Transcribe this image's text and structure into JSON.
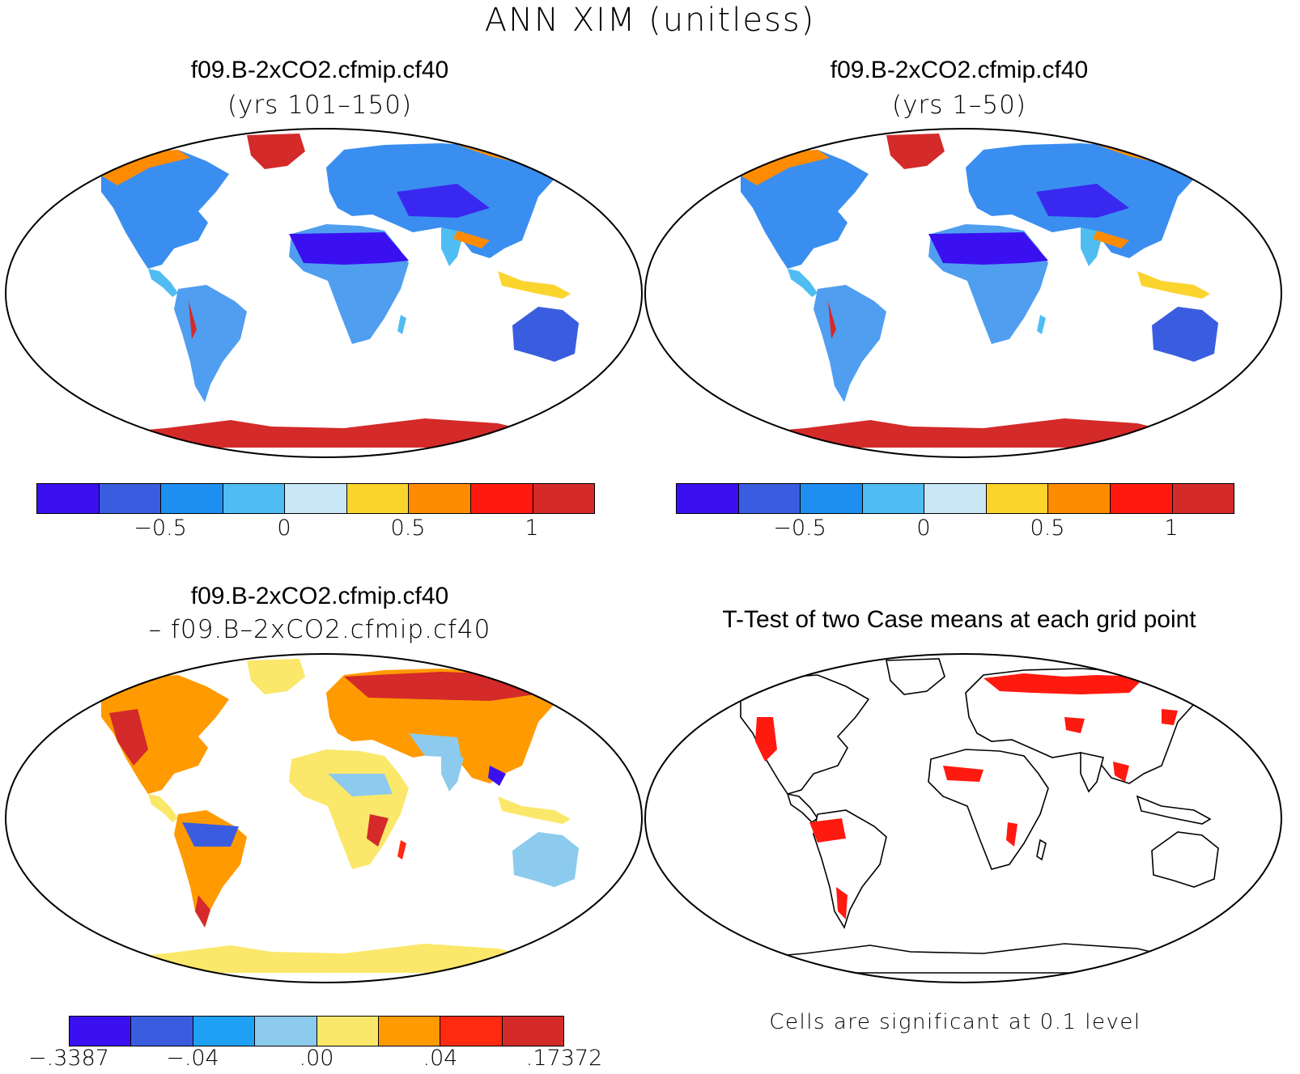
{
  "figure": {
    "title": "ANN XIM (unitless)"
  },
  "panels": [
    {
      "title": "f09.B-2xCO2.cfmip.cf40",
      "subtitle": "(yrs 101–150)"
    },
    {
      "title": "f09.B-2xCO2.cfmip.cf40",
      "subtitle": "(yrs 1–50)"
    },
    {
      "title": "f09.B-2xCO2.cfmip.cf40",
      "subtitle": "– f09.B–2xCO2.cfmip.cf40"
    },
    {
      "title": "T-Test of two Case means at each grid point",
      "note": "Cells are significant at 0.1 level"
    }
  ],
  "colorbars": {
    "absolute": {
      "colors": [
        "#3a10f0",
        "#3a5de0",
        "#1e8ef0",
        "#4fbdf2",
        "#c9e7f7",
        "#fcd42e",
        "#ff8c00",
        "#ff1a10",
        "#d42a2a"
      ],
      "tick_labels": [
        "−0.5",
        "0",
        "0.5",
        "1"
      ]
    },
    "difference": {
      "colors": [
        "#3a10f0",
        "#3a5de0",
        "#1ea0f5",
        "#8ccbed",
        "#fbe86a",
        "#ff9a00",
        "#ff2a10",
        "#d42a2a"
      ],
      "tick_labels": [
        "−.3387",
        "−.04",
        ".00",
        ".04",
        ".17372"
      ]
    }
  },
  "chart_data": [
    {
      "type": "heatmap",
      "title": "f09.B-2xCO2.cfmip.cf40",
      "subtitle": "(yrs 101–150)",
      "colorbar_ticks": [
        -0.5,
        0,
        0.5,
        1
      ]
    },
    {
      "type": "heatmap",
      "title": "f09.B-2xCO2.cfmip.cf40",
      "subtitle": "(yrs 1–50)",
      "colorbar_ticks": [
        -0.5,
        0,
        0.5,
        1
      ]
    },
    {
      "type": "heatmap",
      "title": "f09.B-2xCO2.cfmip.cf40 – f09.B–2xCO2.cfmip.cf40",
      "colorbar_ticks": [
        -0.3387,
        -0.04,
        0.0,
        0.04,
        0.17372
      ]
    },
    {
      "type": "heatmap",
      "title": "T-Test of two Case means at each grid point",
      "significance_level": 0.1
    }
  ]
}
